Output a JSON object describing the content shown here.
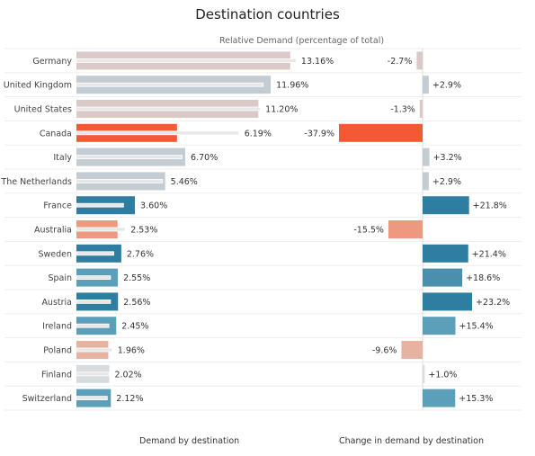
{
  "title": "Destination countries",
  "subtitle": "Relative Demand (percentage of total)",
  "footer_left": "Demand by destination",
  "footer_right": "Change in demand by destination",
  "colors": {
    "grey": "#c3ccd2",
    "grey_light": "#d8dcdf",
    "pink_grey": "#dac9c6",
    "orange": "#f15a35",
    "salmon": "#ee9880",
    "salmon_light": "#e8b2a2",
    "blue_dark": "#2f7ea2",
    "blue_mid": "#4a90ae",
    "blue_light": "#5c9fbb",
    "ref_line": "#e7e7e7"
  },
  "chart_data": [
    {
      "type": "bar",
      "orientation": "horizontal",
      "title": "Demand by destination",
      "categories": [
        "Germany",
        "United Kingdom",
        "United States",
        "Canada",
        "Italy",
        "The Netherlands",
        "France",
        "Australia",
        "Sweden",
        "Spain",
        "Austria",
        "Ireland",
        "Poland",
        "Finland",
        "Switzerland"
      ],
      "values": [
        13.16,
        11.96,
        11.2,
        6.19,
        6.7,
        5.46,
        3.6,
        2.53,
        2.76,
        2.55,
        2.56,
        2.45,
        1.96,
        2.02,
        2.12
      ],
      "labels": [
        "13.16%",
        "11.96%",
        "11.20%",
        "6.19%",
        "6.70%",
        "5.46%",
        "3.60%",
        "2.53%",
        "2.76%",
        "2.55%",
        "2.56%",
        "2.45%",
        "1.96%",
        "2.02%",
        "2.12%"
      ],
      "reference_values": [
        13.5,
        11.5,
        11.3,
        10.0,
        6.5,
        5.3,
        2.9,
        3.0,
        2.3,
        2.1,
        2.1,
        2.0,
        2.2,
        2.0,
        1.9
      ],
      "bar_colors": [
        "pink_grey",
        "grey",
        "pink_grey",
        "orange",
        "grey",
        "grey",
        "blue_dark",
        "salmon",
        "blue_dark",
        "blue_light",
        "blue_dark",
        "blue_light",
        "salmon_light",
        "grey_light",
        "blue_light"
      ],
      "xlim": [
        0,
        14.5
      ],
      "unit": "%"
    },
    {
      "type": "bar",
      "orientation": "horizontal",
      "title": "Change in demand by destination",
      "categories": [
        "Germany",
        "United Kingdom",
        "United States",
        "Canada",
        "Italy",
        "The Netherlands",
        "France",
        "Australia",
        "Sweden",
        "Spain",
        "Austria",
        "Ireland",
        "Poland",
        "Finland",
        "Switzerland"
      ],
      "values": [
        -2.7,
        2.9,
        -1.3,
        -37.9,
        3.2,
        2.9,
        21.8,
        -15.5,
        21.4,
        18.6,
        23.2,
        15.4,
        -9.6,
        1.0,
        15.3
      ],
      "labels": [
        "-2.7%",
        "+2.9%",
        "-1.3%",
        "-37.9%",
        "+3.2%",
        "+2.9%",
        "+21.8%",
        "-15.5%",
        "+21.4%",
        "+18.6%",
        "+23.2%",
        "+15.4%",
        "-9.6%",
        "+1.0%",
        "+15.3%"
      ],
      "bar_colors": [
        "pink_grey",
        "grey",
        "pink_grey",
        "orange",
        "grey",
        "grey",
        "blue_dark",
        "salmon",
        "blue_dark",
        "blue_mid",
        "blue_dark",
        "blue_light",
        "salmon_light",
        "grey_light",
        "blue_light"
      ],
      "xlim": [
        -40,
        25
      ],
      "unit": "%"
    }
  ]
}
